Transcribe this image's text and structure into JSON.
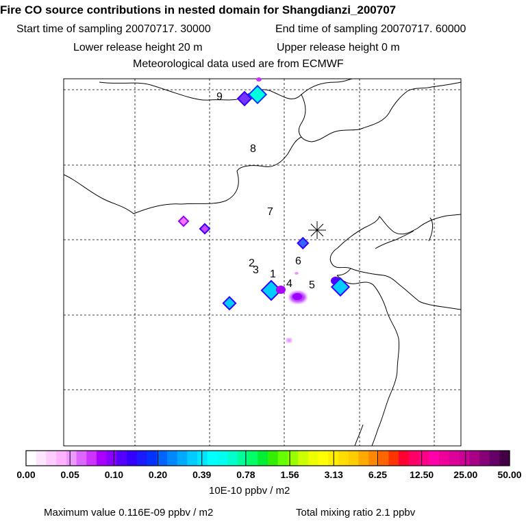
{
  "header": {
    "title": "Fire CO source contributions in nested domain for Shangdianzi_200707",
    "start": "Start time of sampling 20070717. 30000",
    "end": "End time of sampling 20070717. 60000",
    "lower": "Lower release height   20 m",
    "upper": "Upper release height    0 m",
    "met": "Meteorological data used are from ECMWF"
  },
  "chart_data": {
    "type": "heatmap",
    "title": "Fire CO source contributions in nested domain for Shangdianzi_200707",
    "colorbar": {
      "ticks": [
        "0.00",
        "0.05",
        "0.10",
        "0.20",
        "0.39",
        "0.78",
        "1.56",
        "3.13",
        "6.25",
        "12.50",
        "25.00",
        "50.00"
      ],
      "units": "10E-10 ppbv / m2",
      "colors": [
        "#ffffff",
        "#ffe6ff",
        "#ffccff",
        "#ffb3ff",
        "#ee99ff",
        "#dd66ff",
        "#cc33ff",
        "#aa00ff",
        "#8800ff",
        "#5500ff",
        "#3300ff",
        "#1a1aff",
        "#0033ff",
        "#0066ff",
        "#0088ff",
        "#00aaff",
        "#00ccff",
        "#00e5ff",
        "#00ffff",
        "#00ffee",
        "#00ffcc",
        "#00ff99",
        "#00ff66",
        "#00ee33",
        "#33ee00",
        "#66ff00",
        "#99ff00",
        "#ccff00",
        "#eeff00",
        "#ffff00",
        "#ffee00",
        "#ffdd00",
        "#ffcc00",
        "#ffaa00",
        "#ff8800",
        "#ff6600",
        "#ff3300",
        "#ff0033",
        "#ff0066",
        "#ff0088",
        "#ff00aa",
        "#ee0099",
        "#dd0099",
        "#cc0099",
        "#aa0088",
        "#880077",
        "#660066",
        "#440044"
      ]
    },
    "site_labels": [
      "1",
      "2",
      "3",
      "4",
      "5",
      "6",
      "7",
      "8",
      "9"
    ],
    "receptor": "Shangdianzi",
    "max_value": "0.116E-09 ppbv / m2",
    "total_mixing_ratio": "2.1 ppbv"
  },
  "footer": {
    "max": "Maximum value  0.116E-09 ppbv / m2",
    "total": "Total mixing ratio        2.1 ppbv"
  }
}
